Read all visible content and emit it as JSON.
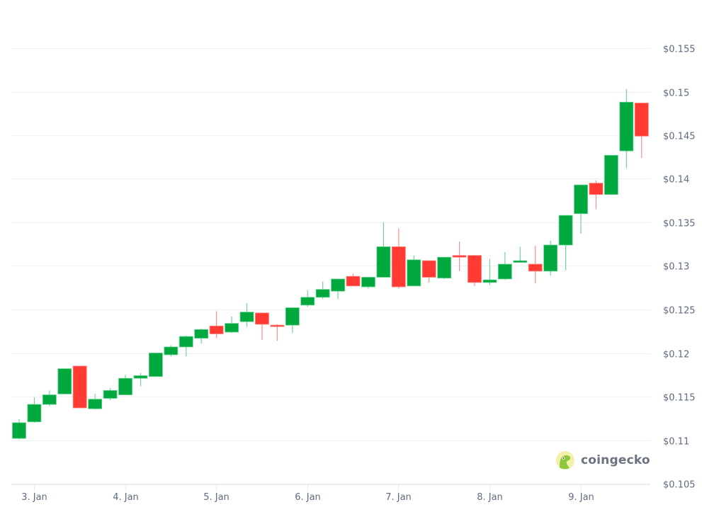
{
  "chart_data": {
    "type": "candlestick",
    "title": "",
    "xlabel": "",
    "ylabel": "",
    "currency_prefix": "$",
    "ylim": [
      0.105,
      0.155
    ],
    "y_ticks": [
      "$0.155",
      "$0.15",
      "$0.145",
      "$0.14",
      "$0.135",
      "$0.13",
      "$0.125",
      "$0.12",
      "$0.115",
      "$0.11",
      "$0.105"
    ],
    "y_tick_values": [
      0.155,
      0.15,
      0.145,
      0.14,
      0.135,
      0.13,
      0.125,
      0.12,
      0.115,
      0.11,
      0.105
    ],
    "x_ticks": [
      "3. Jan",
      "4. Jan",
      "5. Jan",
      "6. Jan",
      "7. Jan",
      "8. Jan",
      "9. Jan"
    ],
    "interval": "4h",
    "grid": true,
    "legend": "none",
    "up_color": "#00a83e",
    "down_color": "#ff3a33",
    "candles": [
      {
        "o": 0.1102,
        "h": 0.1124,
        "l": 0.1101,
        "c": 0.112
      },
      {
        "o": 0.1121,
        "h": 0.1149,
        "l": 0.112,
        "c": 0.1141
      },
      {
        "o": 0.1141,
        "h": 0.1157,
        "l": 0.1139,
        "c": 0.1152
      },
      {
        "o": 0.1153,
        "h": 0.1182,
        "l": 0.1153,
        "c": 0.1182
      },
      {
        "o": 0.1185,
        "h": 0.1185,
        "l": 0.1137,
        "c": 0.1137
      },
      {
        "o": 0.1136,
        "h": 0.1153,
        "l": 0.1135,
        "c": 0.1147
      },
      {
        "o": 0.1148,
        "h": 0.116,
        "l": 0.1146,
        "c": 0.1157
      },
      {
        "o": 0.1152,
        "h": 0.1175,
        "l": 0.1152,
        "c": 0.1171
      },
      {
        "o": 0.1171,
        "h": 0.1177,
        "l": 0.1162,
        "c": 0.1174
      },
      {
        "o": 0.1173,
        "h": 0.12,
        "l": 0.1173,
        "c": 0.12
      },
      {
        "o": 0.1198,
        "h": 0.1209,
        "l": 0.1196,
        "c": 0.1207
      },
      {
        "o": 0.1207,
        "h": 0.122,
        "l": 0.1196,
        "c": 0.1219
      },
      {
        "o": 0.1217,
        "h": 0.1228,
        "l": 0.1211,
        "c": 0.1227
      },
      {
        "o": 0.1231,
        "h": 0.1248,
        "l": 0.1217,
        "c": 0.1222
      },
      {
        "o": 0.1224,
        "h": 0.1242,
        "l": 0.1223,
        "c": 0.1234
      },
      {
        "o": 0.1236,
        "h": 0.1257,
        "l": 0.123,
        "c": 0.1247
      },
      {
        "o": 0.1246,
        "h": 0.1246,
        "l": 0.1215,
        "c": 0.1233
      },
      {
        "o": 0.1232,
        "h": 0.1233,
        "l": 0.1214,
        "c": 0.1231
      },
      {
        "o": 0.1232,
        "h": 0.1252,
        "l": 0.1223,
        "c": 0.1252
      },
      {
        "o": 0.1255,
        "h": 0.1272,
        "l": 0.1253,
        "c": 0.1264
      },
      {
        "o": 0.1264,
        "h": 0.1282,
        "l": 0.1262,
        "c": 0.1273
      },
      {
        "o": 0.1271,
        "h": 0.1285,
        "l": 0.1262,
        "c": 0.1285
      },
      {
        "o": 0.1288,
        "h": 0.1291,
        "l": 0.1277,
        "c": 0.1277
      },
      {
        "o": 0.1276,
        "h": 0.1287,
        "l": 0.1274,
        "c": 0.1287
      },
      {
        "o": 0.1287,
        "h": 0.135,
        "l": 0.1287,
        "c": 0.1322
      },
      {
        "o": 0.1322,
        "h": 0.1343,
        "l": 0.1274,
        "c": 0.1276
      },
      {
        "o": 0.1277,
        "h": 0.1312,
        "l": 0.1277,
        "c": 0.1307
      },
      {
        "o": 0.1306,
        "h": 0.1306,
        "l": 0.1281,
        "c": 0.1287
      },
      {
        "o": 0.1286,
        "h": 0.131,
        "l": 0.1285,
        "c": 0.131
      },
      {
        "o": 0.1312,
        "h": 0.1328,
        "l": 0.1294,
        "c": 0.131
      },
      {
        "o": 0.1312,
        "h": 0.1312,
        "l": 0.1277,
        "c": 0.1281
      },
      {
        "o": 0.1281,
        "h": 0.1308,
        "l": 0.1278,
        "c": 0.1284
      },
      {
        "o": 0.1285,
        "h": 0.1316,
        "l": 0.1284,
        "c": 0.1302
      },
      {
        "o": 0.1304,
        "h": 0.1322,
        "l": 0.1304,
        "c": 0.1306
      },
      {
        "o": 0.1302,
        "h": 0.1323,
        "l": 0.128,
        "c": 0.1294
      },
      {
        "o": 0.1294,
        "h": 0.1329,
        "l": 0.1289,
        "c": 0.1324
      },
      {
        "o": 0.1324,
        "h": 0.1358,
        "l": 0.1295,
        "c": 0.1358
      },
      {
        "o": 0.136,
        "h": 0.1393,
        "l": 0.1337,
        "c": 0.1393
      },
      {
        "o": 0.1395,
        "h": 0.1398,
        "l": 0.1365,
        "c": 0.1382
      },
      {
        "o": 0.1382,
        "h": 0.1427,
        "l": 0.1382,
        "c": 0.1427
      },
      {
        "o": 0.1432,
        "h": 0.1503,
        "l": 0.1412,
        "c": 0.1488
      },
      {
        "o": 0.1487,
        "h": 0.1487,
        "l": 0.1424,
        "c": 0.1449
      }
    ]
  },
  "watermark": {
    "brand_name": "coingecko",
    "icon": "coingecko-gecko-logo-icon"
  }
}
